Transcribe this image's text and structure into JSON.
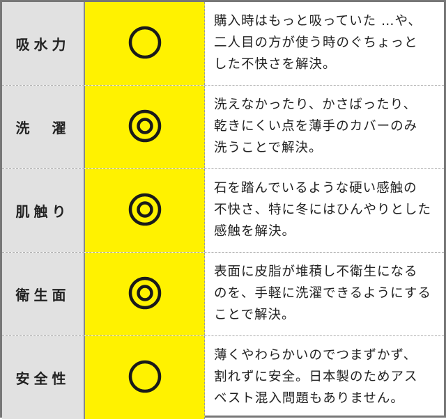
{
  "rows": [
    {
      "label": "吸水力",
      "rating": "○",
      "rating_icon": "single-circle",
      "lines": [
        "購入時はもっと吸っていた …や、",
        "二人目の方が使う時のぐちょっと",
        "した不快さを解決。"
      ]
    },
    {
      "label": "洗　濯",
      "rating": "◎",
      "rating_icon": "double-circle",
      "lines": [
        "洗えなかったり、かさばったり、",
        "乾きにくい点を薄手のカバーのみ",
        "洗うことで解決。"
      ]
    },
    {
      "label": "肌触り",
      "rating": "◎",
      "rating_icon": "double-circle",
      "lines": [
        "石を踏んでいるような硬い感触の",
        "不快さ、特に冬にはひんやりとした",
        "感触を解決。"
      ]
    },
    {
      "label": "衛生面",
      "rating": "◎",
      "rating_icon": "double-circle",
      "lines": [
        "表面に皮脂が堆積し不衛生になる",
        "のを、手軽に洗濯できるようにする",
        "ことで解決。"
      ]
    },
    {
      "label": "安全性",
      "rating": "○",
      "rating_icon": "single-circle",
      "lines": [
        "薄くやわらかいのでつまずかず、",
        "割れずに安全。日本製のためアス",
        "ベスト混入問題もありません。"
      ]
    }
  ],
  "colors": {
    "label_bg": "#e1e1e1",
    "rating_bg": "#fff200",
    "border": "#777777"
  }
}
